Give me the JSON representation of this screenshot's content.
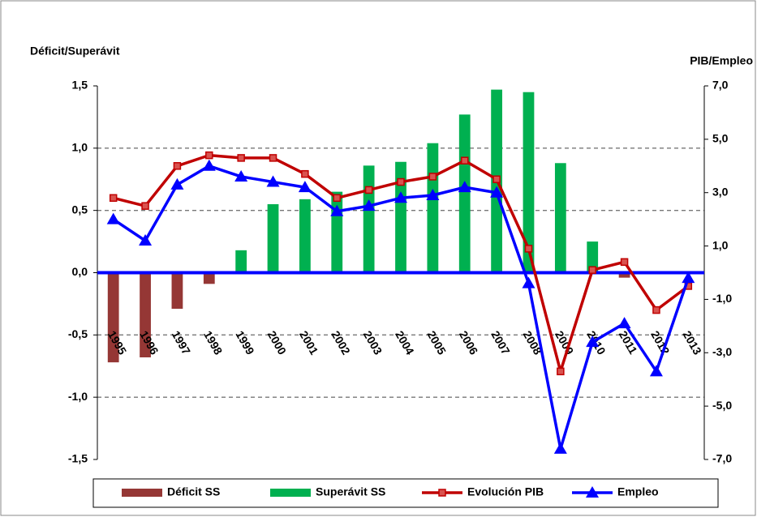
{
  "chart_data": {
    "type": "bar-line",
    "y_label": "Déficit/Superávit",
    "y2_label": "PIB/Empleo",
    "categories": [
      "1995",
      "1996",
      "1997",
      "1998",
      "1999",
      "2000",
      "2001",
      "2002",
      "2003",
      "2004",
      "2005",
      "2006",
      "2007",
      "2008",
      "2009",
      "2010",
      "2011",
      "2012",
      "2013"
    ],
    "series": [
      {
        "name": "Déficit SS",
        "kind": "bar",
        "color": "#953735",
        "values": [
          -0.72,
          -0.68,
          -0.29,
          -0.09,
          null,
          null,
          null,
          null,
          null,
          null,
          null,
          null,
          null,
          null,
          null,
          null,
          -0.04,
          null,
          null
        ]
      },
      {
        "name": "Superávit SS",
        "kind": "bar",
        "color": "#00b050",
        "values": [
          null,
          null,
          null,
          null,
          0.18,
          0.55,
          0.59,
          0.65,
          0.86,
          0.89,
          1.04,
          1.27,
          1.47,
          1.45,
          0.88,
          0.25,
          null,
          null,
          null
        ]
      },
      {
        "name": "Evolución PIB",
        "kind": "line",
        "axis": "y2",
        "marker": "square",
        "color": "#c00000",
        "values": [
          2.8,
          2.5,
          4.0,
          4.4,
          4.3,
          4.3,
          3.7,
          2.8,
          3.1,
          3.4,
          3.6,
          4.2,
          3.5,
          0.9,
          -3.7,
          0.1,
          0.4,
          -1.4,
          -0.5
        ]
      },
      {
        "name": "Empleo",
        "kind": "line",
        "axis": "y2",
        "marker": "triangle",
        "color": "#0000ff",
        "values": [
          2.0,
          1.2,
          3.3,
          4.0,
          3.6,
          3.4,
          3.2,
          2.3,
          2.5,
          2.8,
          2.9,
          3.2,
          3.0,
          -0.4,
          -6.6,
          -2.6,
          -1.9,
          -3.7,
          -0.2
        ]
      }
    ],
    "ylim": [
      -1.5,
      1.5
    ],
    "yticks": [
      {
        "value": -1.5,
        "label": "-1,5"
      },
      {
        "value": -1.0,
        "label": "-1,0"
      },
      {
        "value": -0.5,
        "label": "-0,5"
      },
      {
        "value": 0,
        "label": "0,0"
      },
      {
        "value": 0.5,
        "label": "0,5"
      },
      {
        "value": 1.0,
        "label": "1,0"
      },
      {
        "value": 1.5,
        "label": "1,5"
      }
    ],
    "y2lim": [
      -7,
      7
    ],
    "y2ticks": [
      {
        "value": -7,
        "label": "-7,0"
      },
      {
        "value": -5,
        "label": "-5,0"
      },
      {
        "value": -3,
        "label": "-3,0"
      },
      {
        "value": -1,
        "label": "-1,0"
      },
      {
        "value": 1,
        "label": "1,0"
      },
      {
        "value": 3,
        "label": "3,0"
      },
      {
        "value": 5,
        "label": "5,0"
      },
      {
        "value": 7,
        "label": "7,0"
      }
    ],
    "grid": true,
    "legend": "bottom"
  }
}
